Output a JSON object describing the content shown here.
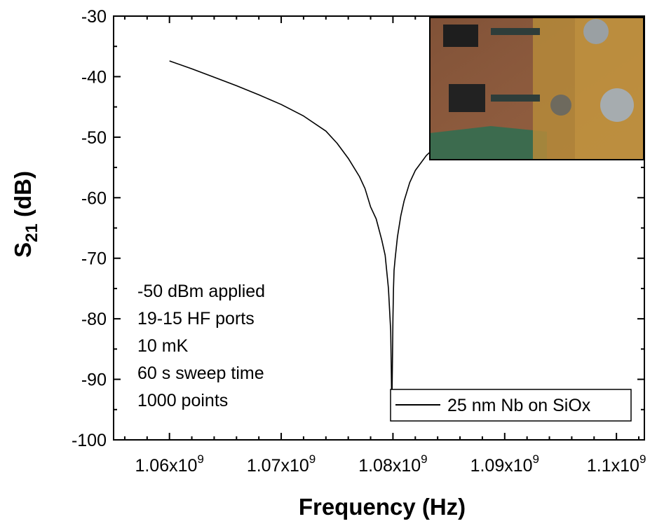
{
  "chart_data": {
    "type": "line",
    "xlabel": "Frequency (Hz)",
    "ylabel": {
      "main": "S",
      "sub": "21",
      "unit": " (dB)"
    },
    "xlim": [
      1055000000.0,
      1102500000.0
    ],
    "ylim": [
      -100,
      -30
    ],
    "x_ticks": [
      {
        "value": 1060000000.0,
        "mantissa": "1.06x10",
        "exp": "9"
      },
      {
        "value": 1070000000.0,
        "mantissa": "1.07x10",
        "exp": "9"
      },
      {
        "value": 1080000000.0,
        "mantissa": "1.08x10",
        "exp": "9"
      },
      {
        "value": 1090000000.0,
        "mantissa": "1.09x10",
        "exp": "9"
      },
      {
        "value": 1100000000.0,
        "mantissa": "1.1x10",
        "exp": "9"
      }
    ],
    "y_ticks": [
      -30,
      -40,
      -50,
      -60,
      -70,
      -80,
      -90,
      -100
    ],
    "y_tick_labels": [
      "-30",
      "-40",
      "-50",
      "-60",
      "-70",
      "-80",
      "-90",
      "-100"
    ],
    "series": [
      {
        "name": "25 nm Nb on SiOx",
        "color": "#000000",
        "x": [
          1060000000.0,
          1062000000.0,
          1064000000.0,
          1066000000.0,
          1068000000.0,
          1070000000.0,
          1072000000.0,
          1074000000.0,
          1075000000.0,
          1076000000.0,
          1077000000.0,
          1077500000.0,
          1078000000.0,
          1078500000.0,
          1079000000.0,
          1079300000.0,
          1079600000.0,
          1079800000.0,
          1079850000.0,
          1079900000.0,
          1079950000.0,
          1080000000.0,
          1080050000.0,
          1080100000.0,
          1080200000.0,
          1080400000.0,
          1080700000.0,
          1081000000.0,
          1081500000.0,
          1082000000.0,
          1083000000.0,
          1084000000.0,
          1085000000.0
        ],
        "y": [
          -37.4,
          -38.7,
          -40.1,
          -41.5,
          -43.0,
          -44.6,
          -46.5,
          -49.0,
          -51.0,
          -53.5,
          -56.5,
          -58.5,
          -61.5,
          -63.5,
          -67.0,
          -69.5,
          -75.0,
          -82.0,
          -88.0,
          -95.0,
          -88.0,
          -80.0,
          -75.0,
          -72.0,
          -70.0,
          -66.5,
          -63.0,
          -60.5,
          -57.5,
          -55.5,
          -53.0,
          -51.3,
          -50.0
        ]
      }
    ],
    "legend": {
      "position": "bottom-right"
    },
    "annotations": [
      "-50 dBm applied",
      "19-15 HF ports",
      "10 mK",
      "60 s sweep time",
      "1000 points"
    ],
    "grid": false,
    "inset": "photograph of a circuit board with coaxial connectors (top-right)"
  }
}
